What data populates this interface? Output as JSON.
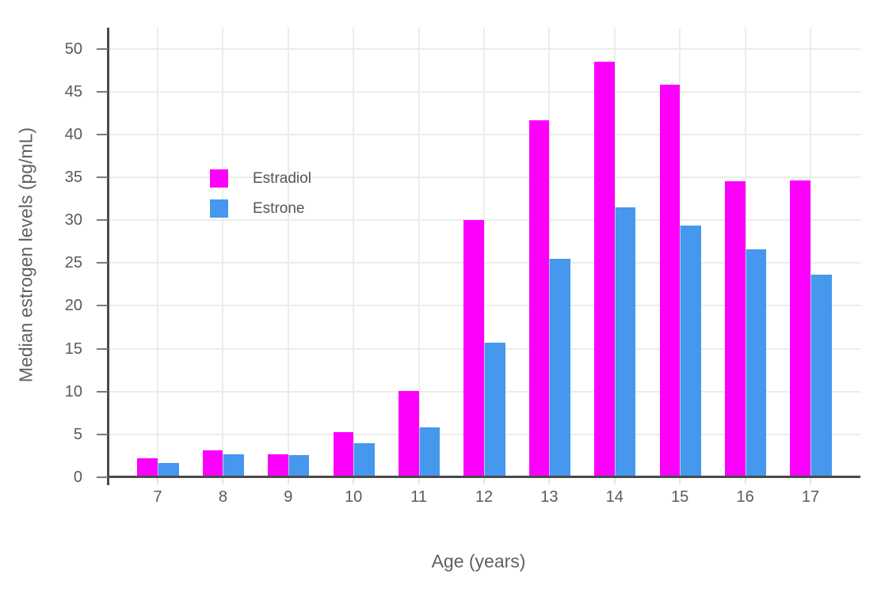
{
  "legend": {
    "items": [
      {
        "label": "Estradiol",
        "color": "#fc00fc"
      },
      {
        "label": "Estrone",
        "color": "#4598ee"
      }
    ]
  },
  "chart_data": {
    "type": "bar",
    "categories": [
      "7",
      "8",
      "9",
      "10",
      "11",
      "12",
      "13",
      "14",
      "15",
      "16",
      "17"
    ],
    "series": [
      {
        "name": "Estradiol",
        "color": "#fc00fc",
        "values": [
          2.2,
          3.1,
          2.7,
          5.3,
          10.1,
          30.0,
          41.6,
          48.5,
          45.8,
          34.5,
          34.6
        ]
      },
      {
        "name": "Estrone",
        "color": "#4598ee",
        "values": [
          1.7,
          2.7,
          2.6,
          4.0,
          5.8,
          15.7,
          25.5,
          31.5,
          29.4,
          26.6,
          23.6
        ]
      }
    ],
    "title": "",
    "xlabel": "Age (years)",
    "ylabel": "Median estrogen levels (pg/mL)",
    "ylim": [
      0,
      50
    ],
    "yticks": [
      0,
      5,
      10,
      15,
      20,
      25,
      30,
      35,
      40,
      45,
      50
    ],
    "grid": true,
    "legend_position": "inside-upper-left",
    "axis_color": "#4a4a4a",
    "grid_color": "#ececec",
    "tick_label_color": "#5a5a5a"
  }
}
